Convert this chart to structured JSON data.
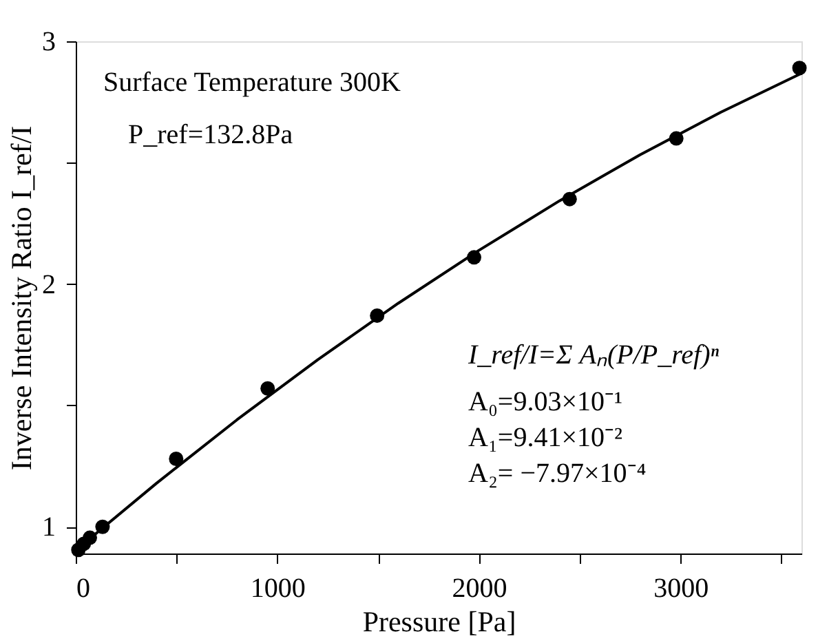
{
  "chart_data": {
    "type": "scatter",
    "xlabel": "Pressure [Pa]",
    "ylabel": "Inverse Intensity Ratio I_ref/I",
    "xlim": [
      0,
      3600
    ],
    "ylim": [
      0.89,
      3
    ],
    "xticks": [
      0,
      {
        "value": 500,
        "label": null
      },
      1000,
      {
        "value": 1500,
        "label": null
      },
      2000,
      {
        "value": 2500,
        "label": null
      },
      3000,
      {
        "value": 3500,
        "label": null
      }
    ],
    "yticks": [
      1,
      {
        "value": 1.5,
        "label": null
      },
      2,
      {
        "value": 2.5,
        "label": null
      },
      3
    ],
    "grid": false,
    "annotations": [
      "Surface Temperature 300K",
      "P_ref=132.8Pa",
      "I_ref/I=Σ Aₙ(P/P_ref)ⁿ",
      "A₀=9.03×10⁻¹",
      "A₁=9.41×10⁻²",
      "A₂= −7.97×10⁻⁴"
    ],
    "series": [
      {
        "marker": "circle",
        "color": "#000000",
        "x": [
          13,
          40,
          70,
          133,
          498,
          952,
          1495,
          1976,
          2450,
          2979,
          3590
        ],
        "values": [
          0.905,
          0.93,
          0.955,
          1.0,
          1.28,
          1.57,
          1.87,
          2.11,
          2.35,
          2.6,
          2.89
        ]
      },
      {
        "type": "line",
        "line_style": "solid",
        "marker": "none",
        "color": "#000000",
        "x": [
          0,
          400,
          800,
          1200,
          1600,
          2000,
          2400,
          2800,
          3200,
          3600
        ],
        "values": [
          0.903,
          1.179,
          1.441,
          1.688,
          1.921,
          2.139,
          2.343,
          2.533,
          2.708,
          2.868
        ]
      }
    ]
  }
}
